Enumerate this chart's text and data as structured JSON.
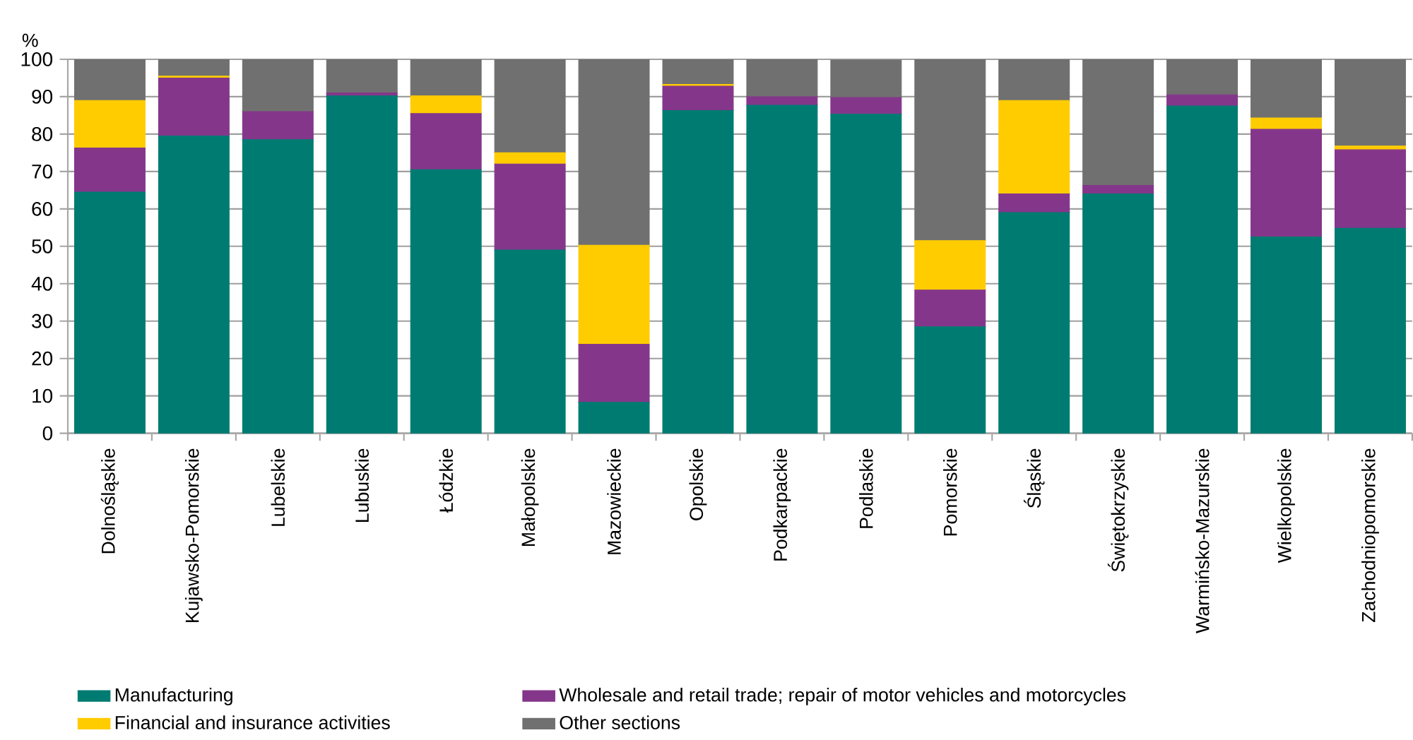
{
  "chart_data": {
    "type": "bar",
    "stacked": true,
    "ylabel": "%",
    "categories": [
      "Dolnośląskie",
      "Kujawsko-Pomorskie",
      "Lubelskie",
      "Lubuskie",
      "Łódzkie",
      "Małopolskie",
      "Mazowieckie",
      "Opolskie",
      "Podkarpackie",
      "Podlaskie",
      "Pomorskie",
      "Śląskie",
      "Świętokrzyskie",
      "Warmińsko-Mazurskie",
      "Wielkopolskie",
      "Zachodniopomorskie"
    ],
    "series": [
      {
        "name": "Manufacturing",
        "color": "#007b72",
        "values": [
          64.5,
          79.5,
          78.5,
          90.2,
          70.5,
          49,
          8.3,
          86.3,
          87.7,
          85.3,
          28.5,
          59,
          64,
          87.5,
          52.5,
          54.8
        ]
      },
      {
        "name": "Wholesale and retail trade; repair of motor vehicles and motorcycles",
        "color": "#84378a",
        "values": [
          11.8,
          15.5,
          7.5,
          0.8,
          15,
          23,
          15.5,
          6.5,
          2.3,
          4.5,
          9.8,
          5,
          2.3,
          3,
          28.8,
          21
        ]
      },
      {
        "name": "Financial and insurance activities",
        "color": "#ffcc00",
        "values": [
          12.7,
          0.5,
          0,
          0,
          4.7,
          3,
          26.5,
          0.5,
          0,
          null,
          13.2,
          25,
          0,
          0,
          3,
          1
        ]
      },
      {
        "name": "Other sections",
        "color": "#707070",
        "values": [
          11,
          4.5,
          14,
          9,
          9.8,
          25,
          49.7,
          6.7,
          10,
          10,
          48.5,
          11,
          33.7,
          9.5,
          15.7,
          23.2
        ]
      }
    ],
    "ylim": [
      0,
      100
    ],
    "yticks": [
      0,
      10,
      20,
      30,
      40,
      50,
      60,
      70,
      80,
      90,
      100
    ],
    "grid": "y",
    "legend": "bottom"
  }
}
